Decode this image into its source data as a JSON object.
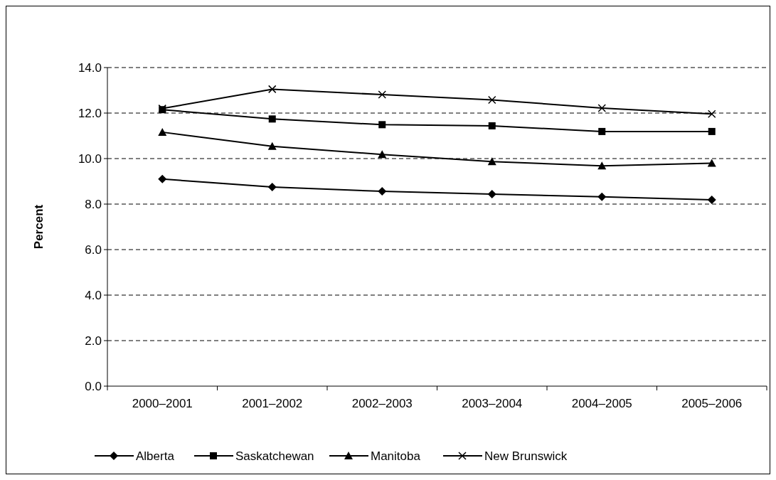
{
  "chart_data": {
    "type": "line",
    "ylabel": "Percent",
    "categories": [
      "2000–2001",
      "2001–2002",
      "2002–2003",
      "2003–2004",
      "2004–2005",
      "2005–2006"
    ],
    "series": [
      {
        "name": "Alberta",
        "color": "#000000",
        "marker": "diamond",
        "values": [
          9.1,
          8.75,
          8.56,
          8.44,
          8.32,
          8.19
        ]
      },
      {
        "name": "Saskatchewan",
        "color": "#000000",
        "marker": "square",
        "values": [
          12.15,
          11.74,
          11.49,
          11.44,
          11.19,
          11.19
        ]
      },
      {
        "name": "Manitoba",
        "color": "#000000",
        "marker": "triangle",
        "values": [
          11.16,
          10.54,
          10.18,
          9.87,
          9.68,
          9.8
        ]
      },
      {
        "name": "New Brunswick",
        "color": "#000000",
        "marker": "cross",
        "values": [
          12.2,
          13.05,
          12.81,
          12.58,
          12.22,
          11.96
        ]
      }
    ],
    "ylim": [
      0,
      14
    ],
    "yticks": [
      {
        "value": 0,
        "label": "0.0"
      },
      {
        "value": 2,
        "label": "2.0"
      },
      {
        "value": 4,
        "label": "4.0"
      },
      {
        "value": 6,
        "label": "6.0"
      },
      {
        "value": 8,
        "label": "8.0"
      },
      {
        "value": 10,
        "label": "10.0"
      },
      {
        "value": 12,
        "label": "12.0"
      },
      {
        "value": 14,
        "label": "14.0"
      }
    ],
    "grid": "y",
    "legend": "bottom",
    "line_style": "solid"
  }
}
